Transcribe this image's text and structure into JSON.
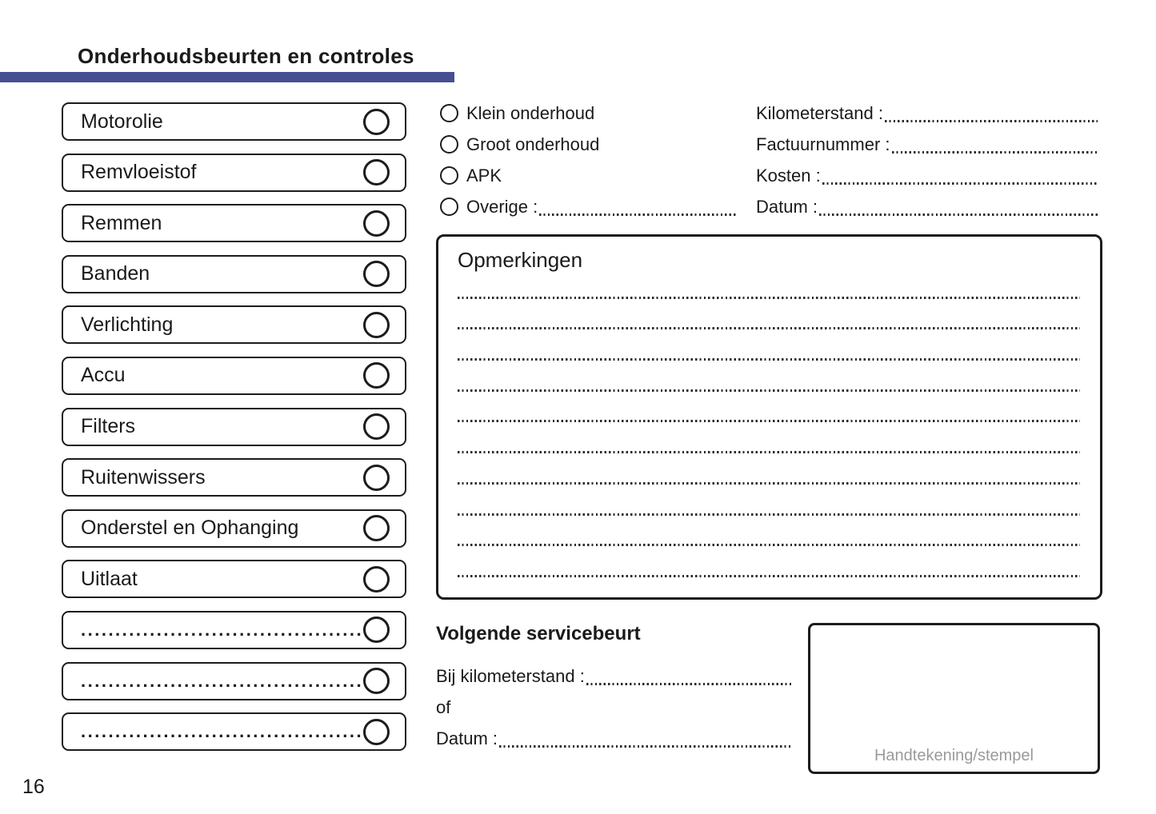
{
  "page": {
    "title": "Onderhoudsbeurten en controles",
    "page_number": "16"
  },
  "colors": {
    "accent_bar": "#484f91",
    "signature_label": "#9a9a9a"
  },
  "checklist": {
    "items": [
      {
        "label": "Motorolie"
      },
      {
        "label": "Remvloeistof"
      },
      {
        "label": "Remmen"
      },
      {
        "label": "Banden"
      },
      {
        "label": "Verlichting"
      },
      {
        "label": "Accu"
      },
      {
        "label": "Filters"
      },
      {
        "label": "Ruitenwissers"
      },
      {
        "label": "Onderstel en Ophanging"
      },
      {
        "label": "Uitlaat"
      },
      {
        "label": "............................................."
      },
      {
        "label": "............................................."
      },
      {
        "label": "............................................."
      }
    ]
  },
  "service_type": {
    "options": [
      {
        "label": "Klein onderhoud"
      },
      {
        "label": "Groot onderhoud"
      },
      {
        "label": "APK"
      },
      {
        "label": "Overige :"
      }
    ]
  },
  "invoice_fields": {
    "rows": [
      {
        "label": "Kilometerstand :"
      },
      {
        "label": "Factuurnummer :"
      },
      {
        "label": "Kosten :"
      },
      {
        "label": "Datum :"
      }
    ]
  },
  "remarks": {
    "title": "Opmerkingen",
    "line_count": 10
  },
  "next_service": {
    "title": "Volgende servicebeurt",
    "km_label": "Bij kilometerstand :",
    "or_label": "of",
    "date_label": "Datum :"
  },
  "signature_box": {
    "label": "Handtekening/stempel"
  }
}
